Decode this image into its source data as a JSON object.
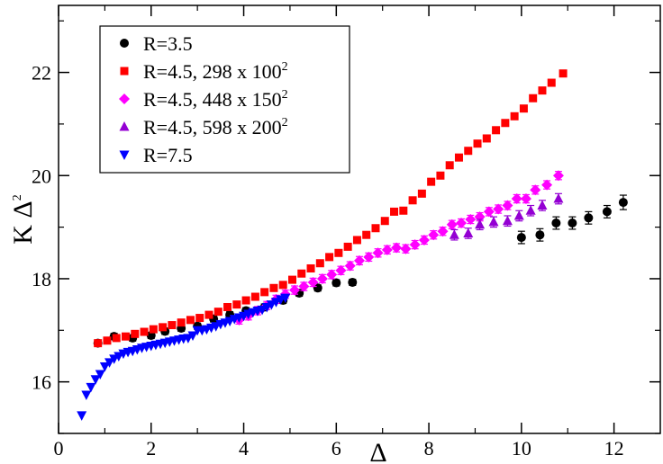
{
  "chart_data": {
    "type": "scatter",
    "title": "",
    "xlabel": "Δ",
    "ylabel": "K Δ",
    "ylabel_exponent": "2",
    "xlim": [
      0,
      13
    ],
    "ylim": [
      15,
      23.3
    ],
    "x_ticks": [
      0,
      2,
      4,
      6,
      8,
      10,
      12
    ],
    "y_ticks": [
      16,
      18,
      20,
      22
    ],
    "grid": false,
    "legend_position": "top-left",
    "series": [
      {
        "name": "R=3.5",
        "label_main": "R=3.5",
        "label_exp": "",
        "color": "#000000",
        "marker": "circle",
        "points": [
          [
            0.85,
            16.75
          ],
          [
            1.2,
            16.88
          ],
          [
            1.6,
            16.85
          ],
          [
            2.0,
            16.9
          ],
          [
            2.3,
            16.98
          ],
          [
            2.65,
            17.04
          ],
          [
            3.0,
            17.08
          ],
          [
            3.35,
            17.22
          ],
          [
            3.7,
            17.3
          ],
          [
            4.05,
            17.38
          ],
          [
            4.45,
            17.45
          ],
          [
            4.85,
            17.58
          ],
          [
            5.2,
            17.72
          ],
          [
            5.6,
            17.82
          ],
          [
            6.0,
            17.92
          ],
          [
            6.35,
            17.93
          ],
          [
            10.0,
            18.8
          ],
          [
            10.4,
            18.85
          ],
          [
            10.75,
            19.08
          ],
          [
            11.1,
            19.08
          ],
          [
            11.45,
            19.18
          ],
          [
            11.85,
            19.3
          ],
          [
            12.2,
            19.48
          ]
        ],
        "error": [
          0.06,
          0.06,
          0.06,
          0.06,
          0.06,
          0.06,
          0.06,
          0.06,
          0.06,
          0.06,
          0.06,
          0.06,
          0.06,
          0.06,
          0.06,
          0.06,
          0.12,
          0.12,
          0.12,
          0.12,
          0.12,
          0.12,
          0.14
        ]
      },
      {
        "name": "R=4.5, 298 x 100^2",
        "label_main": "R=4.5, 298 x 100",
        "label_exp": "2",
        "color": "#ff0000",
        "marker": "square",
        "points": [
          [
            0.85,
            16.75
          ],
          [
            1.05,
            16.8
          ],
          [
            1.25,
            16.85
          ],
          [
            1.45,
            16.88
          ],
          [
            1.65,
            16.93
          ],
          [
            1.85,
            16.97
          ],
          [
            2.05,
            17.02
          ],
          [
            2.25,
            17.06
          ],
          [
            2.45,
            17.1
          ],
          [
            2.65,
            17.15
          ],
          [
            2.85,
            17.2
          ],
          [
            3.05,
            17.24
          ],
          [
            3.25,
            17.3
          ],
          [
            3.45,
            17.36
          ],
          [
            3.65,
            17.45
          ],
          [
            3.85,
            17.5
          ],
          [
            4.05,
            17.58
          ],
          [
            4.25,
            17.65
          ],
          [
            4.45,
            17.74
          ],
          [
            4.65,
            17.82
          ],
          [
            4.85,
            17.88
          ],
          [
            5.05,
            17.98
          ],
          [
            5.25,
            18.1
          ],
          [
            5.45,
            18.2
          ],
          [
            5.65,
            18.3
          ],
          [
            5.85,
            18.42
          ],
          [
            6.05,
            18.5
          ],
          [
            6.25,
            18.62
          ],
          [
            6.45,
            18.75
          ],
          [
            6.65,
            18.85
          ],
          [
            6.85,
            18.98
          ],
          [
            7.05,
            19.12
          ],
          [
            7.25,
            19.3
          ],
          [
            7.45,
            19.32
          ],
          [
            7.65,
            19.52
          ],
          [
            7.85,
            19.65
          ],
          [
            8.05,
            19.88
          ],
          [
            8.25,
            20.0
          ],
          [
            8.45,
            20.2
          ],
          [
            8.65,
            20.35
          ],
          [
            8.85,
            20.48
          ],
          [
            9.05,
            20.62
          ],
          [
            9.25,
            20.72
          ],
          [
            9.45,
            20.88
          ],
          [
            9.65,
            21.02
          ],
          [
            9.85,
            21.15
          ],
          [
            10.05,
            21.3
          ],
          [
            10.25,
            21.5
          ],
          [
            10.45,
            21.65
          ],
          [
            10.65,
            21.8
          ],
          [
            10.9,
            21.98
          ]
        ],
        "error": 0.06
      },
      {
        "name": "R=4.5, 448 x 150^2",
        "label_main": "R=4.5, 448 x 150",
        "label_exp": "2",
        "color": "#ff00ff",
        "marker": "diamond",
        "points": [
          [
            3.9,
            17.2
          ],
          [
            4.1,
            17.28
          ],
          [
            4.3,
            17.38
          ],
          [
            4.5,
            17.48
          ],
          [
            4.7,
            17.6
          ],
          [
            4.9,
            17.7
          ],
          [
            5.1,
            17.78
          ],
          [
            5.3,
            17.85
          ],
          [
            5.5,
            17.93
          ],
          [
            5.7,
            18.0
          ],
          [
            5.9,
            18.08
          ],
          [
            6.1,
            18.16
          ],
          [
            6.3,
            18.25
          ],
          [
            6.5,
            18.35
          ],
          [
            6.7,
            18.42
          ],
          [
            6.9,
            18.5
          ],
          [
            7.1,
            18.56
          ],
          [
            7.3,
            18.6
          ],
          [
            7.5,
            18.58
          ],
          [
            7.7,
            18.66
          ],
          [
            7.9,
            18.75
          ],
          [
            8.1,
            18.85
          ],
          [
            8.3,
            18.92
          ],
          [
            8.5,
            19.05
          ],
          [
            8.7,
            19.08
          ],
          [
            8.9,
            19.15
          ],
          [
            9.1,
            19.2
          ],
          [
            9.3,
            19.3
          ],
          [
            9.5,
            19.35
          ],
          [
            9.7,
            19.42
          ],
          [
            9.9,
            19.55
          ],
          [
            10.1,
            19.55
          ],
          [
            10.3,
            19.72
          ],
          [
            10.55,
            19.82
          ],
          [
            10.8,
            20.0
          ]
        ],
        "error": 0.08
      },
      {
        "name": "R=4.5, 598 x 200^2",
        "label_main": "R=4.5, 598 x 200",
        "label_exp": "2",
        "color": "#9400d3",
        "marker": "triangle-up",
        "points": [
          [
            8.55,
            18.85
          ],
          [
            8.85,
            18.88
          ],
          [
            9.1,
            19.05
          ],
          [
            9.4,
            19.1
          ],
          [
            9.7,
            19.12
          ],
          [
            9.95,
            19.22
          ],
          [
            10.2,
            19.32
          ],
          [
            10.45,
            19.42
          ],
          [
            10.8,
            19.55
          ]
        ],
        "error": 0.1
      },
      {
        "name": "R=7.5",
        "label_main": "R=7.5",
        "label_exp": "",
        "color": "#0000ff",
        "marker": "triangle-down",
        "points": [
          [
            0.5,
            15.35
          ],
          [
            0.6,
            15.75
          ],
          [
            0.7,
            15.9
          ],
          [
            0.8,
            16.05
          ],
          [
            0.9,
            16.15
          ],
          [
            1.0,
            16.3
          ],
          [
            1.1,
            16.38
          ],
          [
            1.2,
            16.45
          ],
          [
            1.3,
            16.5
          ],
          [
            1.4,
            16.55
          ],
          [
            1.5,
            16.58
          ],
          [
            1.6,
            16.6
          ],
          [
            1.7,
            16.63
          ],
          [
            1.8,
            16.66
          ],
          [
            1.9,
            16.68
          ],
          [
            2.0,
            16.7
          ],
          [
            2.1,
            16.72
          ],
          [
            2.2,
            16.74
          ],
          [
            2.3,
            16.76
          ],
          [
            2.4,
            16.78
          ],
          [
            2.5,
            16.8
          ],
          [
            2.6,
            16.82
          ],
          [
            2.7,
            16.84
          ],
          [
            2.8,
            16.85
          ],
          [
            2.9,
            16.9
          ],
          [
            3.0,
            17.0
          ],
          [
            3.1,
            17.0
          ],
          [
            3.2,
            17.02
          ],
          [
            3.3,
            17.05
          ],
          [
            3.4,
            17.08
          ],
          [
            3.5,
            17.12
          ],
          [
            3.6,
            17.15
          ],
          [
            3.7,
            17.18
          ],
          [
            3.8,
            17.22
          ],
          [
            3.9,
            17.25
          ],
          [
            4.0,
            17.28
          ],
          [
            4.1,
            17.32
          ],
          [
            4.2,
            17.35
          ],
          [
            4.3,
            17.38
          ],
          [
            4.4,
            17.4
          ],
          [
            4.5,
            17.45
          ],
          [
            4.6,
            17.5
          ],
          [
            4.7,
            17.55
          ],
          [
            4.8,
            17.6
          ],
          [
            4.9,
            17.63
          ]
        ],
        "error": 0
      }
    ]
  }
}
